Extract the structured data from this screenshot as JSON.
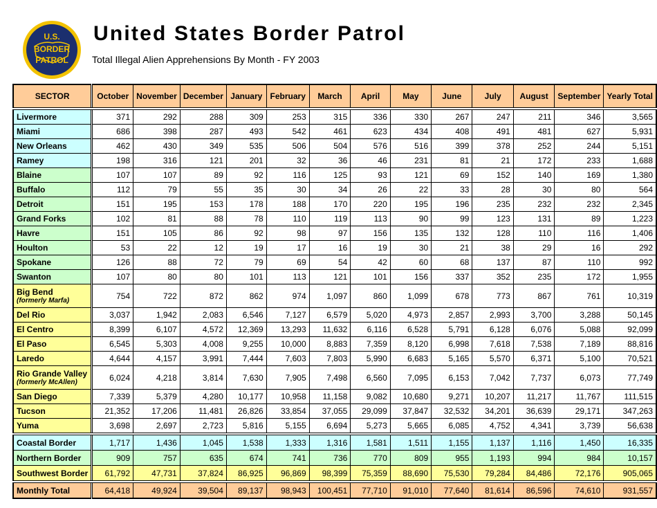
{
  "header": {
    "logo": [
      "U.S.",
      "BORDER",
      "PATROL"
    ],
    "title": "United States Border Patrol",
    "subtitle": "Total Illegal Alien Apprehensions By Month - FY 2003"
  },
  "table": {
    "columns": [
      "SECTOR",
      "October",
      "November",
      "December",
      "January",
      "February",
      "March",
      "April",
      "May",
      "June",
      "July",
      "August",
      "September",
      "Yearly Total"
    ],
    "rows": [
      {
        "sector": "Livermore",
        "values": [
          "371",
          "292",
          "288",
          "309",
          "253",
          "315",
          "336",
          "330",
          "267",
          "247",
          "211",
          "346",
          "3,565"
        ]
      },
      {
        "sector": "Miami",
        "values": [
          "686",
          "398",
          "287",
          "493",
          "542",
          "461",
          "623",
          "434",
          "408",
          "491",
          "481",
          "627",
          "5,931"
        ]
      },
      {
        "sector": "New Orleans",
        "values": [
          "462",
          "430",
          "349",
          "535",
          "506",
          "504",
          "576",
          "516",
          "399",
          "378",
          "252",
          "244",
          "5,151"
        ]
      },
      {
        "sector": "Ramey",
        "values": [
          "198",
          "316",
          "121",
          "201",
          "32",
          "36",
          "46",
          "231",
          "81",
          "21",
          "172",
          "233",
          "1,688"
        ]
      },
      {
        "sector": "Blaine",
        "values": [
          "107",
          "107",
          "89",
          "92",
          "116",
          "125",
          "93",
          "121",
          "69",
          "152",
          "140",
          "169",
          "1,380"
        ]
      },
      {
        "sector": "Buffalo",
        "values": [
          "112",
          "79",
          "55",
          "35",
          "30",
          "34",
          "26",
          "22",
          "33",
          "28",
          "30",
          "80",
          "564"
        ]
      },
      {
        "sector": "Detroit",
        "values": [
          "151",
          "195",
          "153",
          "178",
          "188",
          "170",
          "220",
          "195",
          "196",
          "235",
          "232",
          "232",
          "2,345"
        ]
      },
      {
        "sector": "Grand Forks",
        "values": [
          "102",
          "81",
          "88",
          "78",
          "110",
          "119",
          "113",
          "90",
          "99",
          "123",
          "131",
          "89",
          "1,223"
        ]
      },
      {
        "sector": "Havre",
        "values": [
          "151",
          "105",
          "86",
          "92",
          "98",
          "97",
          "156",
          "135",
          "132",
          "128",
          "110",
          "116",
          "1,406"
        ]
      },
      {
        "sector": "Houlton",
        "values": [
          "53",
          "22",
          "12",
          "19",
          "17",
          "16",
          "19",
          "30",
          "21",
          "38",
          "29",
          "16",
          "292"
        ]
      },
      {
        "sector": "Spokane",
        "values": [
          "126",
          "88",
          "72",
          "79",
          "69",
          "54",
          "42",
          "60",
          "68",
          "137",
          "87",
          "110",
          "992"
        ]
      },
      {
        "sector": "Swanton",
        "values": [
          "107",
          "80",
          "80",
          "101",
          "113",
          "121",
          "101",
          "156",
          "337",
          "352",
          "235",
          "172",
          "1,955"
        ]
      },
      {
        "sector": "Big Bend",
        "note": "(formerly Marfa)",
        "values": [
          "754",
          "722",
          "872",
          "862",
          "974",
          "1,097",
          "860",
          "1,099",
          "678",
          "773",
          "867",
          "761",
          "10,319"
        ]
      },
      {
        "sector": "Del Rio",
        "values": [
          "3,037",
          "1,942",
          "2,083",
          "6,546",
          "7,127",
          "6,579",
          "5,020",
          "4,973",
          "2,857",
          "2,993",
          "3,700",
          "3,288",
          "50,145"
        ]
      },
      {
        "sector": "El Centro",
        "values": [
          "8,399",
          "6,107",
          "4,572",
          "12,369",
          "13,293",
          "11,632",
          "6,116",
          "6,528",
          "5,791",
          "6,128",
          "6,076",
          "5,088",
          "92,099"
        ]
      },
      {
        "sector": "El Paso",
        "values": [
          "6,545",
          "5,303",
          "4,008",
          "9,255",
          "10,000",
          "8,883",
          "7,359",
          "8,120",
          "6,998",
          "7,618",
          "7,538",
          "7,189",
          "88,816"
        ]
      },
      {
        "sector": "Laredo",
        "values": [
          "4,644",
          "4,157",
          "3,991",
          "7,444",
          "7,603",
          "7,803",
          "5,990",
          "6,683",
          "5,165",
          "5,570",
          "6,371",
          "5,100",
          "70,521"
        ]
      },
      {
        "sector": "Rio Grande Valley",
        "note": "(formerly McAllen)",
        "values": [
          "6,024",
          "4,218",
          "3,814",
          "7,630",
          "7,905",
          "7,498",
          "6,560",
          "7,095",
          "6,153",
          "7,042",
          "7,737",
          "6,073",
          "77,749"
        ]
      },
      {
        "sector": "San Diego",
        "values": [
          "7,339",
          "5,379",
          "4,280",
          "10,177",
          "10,958",
          "11,158",
          "9,082",
          "10,680",
          "9,271",
          "10,207",
          "11,217",
          "11,767",
          "111,515"
        ]
      },
      {
        "sector": "Tucson",
        "values": [
          "21,352",
          "17,206",
          "11,481",
          "26,826",
          "33,854",
          "37,055",
          "29,099",
          "37,847",
          "32,532",
          "34,201",
          "36,639",
          "29,171",
          "347,263"
        ]
      },
      {
        "sector": "Yuma",
        "values": [
          "3,698",
          "2,697",
          "2,723",
          "5,816",
          "5,155",
          "6,694",
          "5,273",
          "5,665",
          "6,085",
          "4,752",
          "4,341",
          "3,739",
          "56,638"
        ]
      },
      {
        "sector": "Coastal Border",
        "values": [
          "1,717",
          "1,436",
          "1,045",
          "1,538",
          "1,333",
          "1,316",
          "1,581",
          "1,511",
          "1,155",
          "1,137",
          "1,116",
          "1,450",
          "16,335"
        ]
      },
      {
        "sector": "Northern Border",
        "values": [
          "909",
          "757",
          "635",
          "674",
          "741",
          "736",
          "770",
          "809",
          "955",
          "1,193",
          "994",
          "984",
          "10,157"
        ]
      },
      {
        "sector": "Southwest Border",
        "values": [
          "61,792",
          "47,731",
          "37,824",
          "86,925",
          "96,869",
          "98,399",
          "75,359",
          "88,690",
          "75,530",
          "79,284",
          "84,486",
          "72,176",
          "905,065"
        ]
      },
      {
        "sector": "Monthly Total",
        "values": [
          "64,418",
          "49,924",
          "39,504",
          "89,137",
          "98,943",
          "100,451",
          "77,710",
          "91,010",
          "77,640",
          "81,614",
          "86,596",
          "74,610",
          "931,557"
        ]
      }
    ]
  }
}
